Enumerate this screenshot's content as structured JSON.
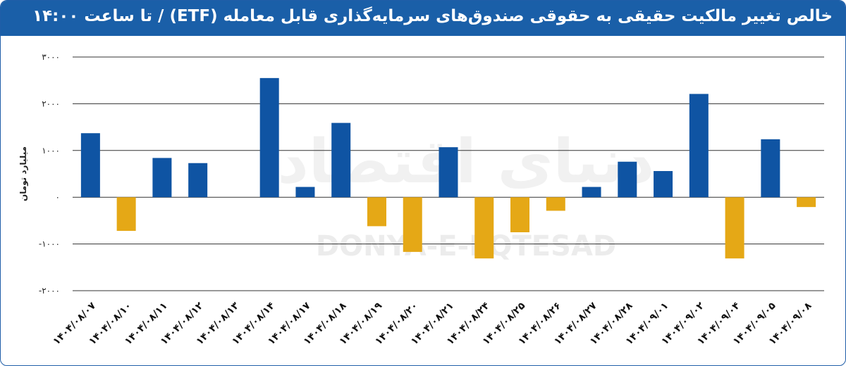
{
  "header": {
    "title": "خالص تغییر مالکیت حقیقی به حقوقی صندوق‌های سرمایه‌گذاری قابل معامله (ETF)  / تا ساعت ۱۴:۰۰"
  },
  "watermark": {
    "latin": "DONYA-E-EQTESAD",
    "persian": "دنیای اقتصاد"
  },
  "colors": {
    "header": "#1a5fa8",
    "positive": "#0f54a3",
    "negative": "#e5a816",
    "grid": "#333333"
  },
  "chart_data": {
    "type": "bar",
    "ylabel": "میلیارد تومان",
    "ylim": [
      -2000,
      3000
    ],
    "yticks": [
      3000,
      2000,
      1000,
      0,
      -1000,
      -2000
    ],
    "ytick_labels": [
      "۳۰۰۰",
      "۲۰۰۰",
      "۱۰۰۰",
      "۰",
      "-۱۰۰۰",
      "-۲۰۰۰"
    ],
    "grid": true,
    "categories": [
      "۱۴۰۴/۰۸/۰۷",
      "۱۴۰۴/۰۸/۱۰",
      "۱۴۰۴/۰۸/۱۱",
      "۱۴۰۴/۰۸/۱۲",
      "۱۴۰۴/۰۸/۱۳",
      "۱۴۰۴/۰۸/۱۴",
      "۱۴۰۴/۰۸/۱۷",
      "۱۴۰۴/۰۸/۱۸",
      "۱۴۰۴/۰۸/۱۹",
      "۱۴۰۴/۰۸/۲۰",
      "۱۴۰۴/۰۸/۲۱",
      "۱۴۰۴/۰۸/۲۴",
      "۱۴۰۴/۰۸/۲۵",
      "۱۴۰۴/۰۸/۲۶",
      "۱۴۰۴/۰۸/۲۷",
      "۱۴۰۴/۰۸/۲۸",
      "۱۴۰۴/۰۹/۰۱",
      "۱۴۰۴/۰۹/۰۲",
      "۱۴۰۴/۰۹/۰۴",
      "۱۴۰۴/۰۹/۰۵",
      "۱۴۰۴/۰۹/۰۸"
    ],
    "values": [
      1370,
      -720,
      840,
      730,
      0,
      2550,
      220,
      1590,
      -620,
      -1170,
      1070,
      -1310,
      -750,
      -290,
      220,
      760,
      560,
      2210,
      -1310,
      1240,
      -210
    ]
  }
}
